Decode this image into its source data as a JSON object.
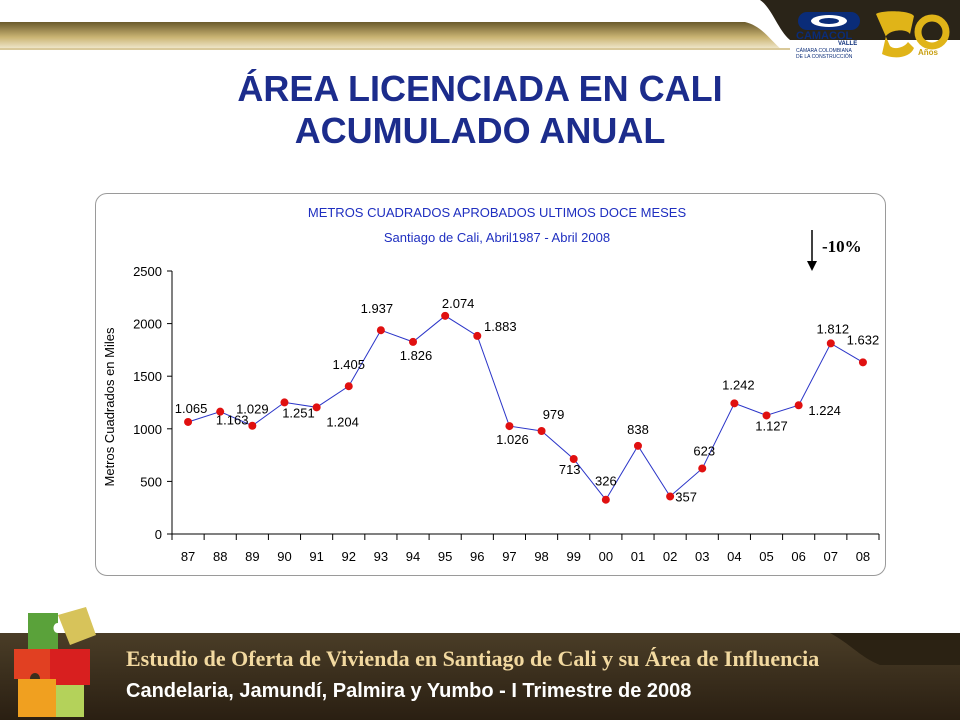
{
  "header": {
    "logo_name": "CAMACOL",
    "logo_region": "VALLE",
    "logo_org_line1": "CÁMARA COLOMBIANA",
    "logo_org_line2": "DE LA CONSTRUCCIÓN",
    "anniversary_number": "50",
    "anniversary_word": "Años"
  },
  "slide": {
    "title_line1": "ÁREA LICENCIADA EN CALI",
    "title_line2": "ACUMULADO ANUAL"
  },
  "chart_data": {
    "type": "line",
    "title": "METROS CUADRADOS APROBADOS ULTIMOS DOCE MESES",
    "subtitle": "Santiago de Cali, Abril1987 - Abril 2008",
    "xlabel": "",
    "ylabel": "Metros Cuadrados en Miles",
    "ylim": [
      0,
      2500
    ],
    "yticks": [
      0,
      500,
      1000,
      1500,
      2000,
      2500
    ],
    "grid": false,
    "categories": [
      "87",
      "88",
      "89",
      "90",
      "91",
      "92",
      "93",
      "94",
      "95",
      "96",
      "97",
      "98",
      "99",
      "00",
      "01",
      "02",
      "03",
      "04",
      "05",
      "06",
      "07",
      "08"
    ],
    "values": [
      1065,
      1163,
      1029,
      1251,
      1204,
      1405,
      1937,
      1826,
      2074,
      1883,
      1026,
      979,
      713,
      326,
      838,
      357,
      623,
      1242,
      1127,
      1224,
      1812,
      1632
    ],
    "data_labels": [
      "1.065",
      "1.163",
      "1.029",
      "1.251",
      "1.204",
      "1.405",
      "1.937",
      "1.826",
      "2.074",
      "1.883",
      "1.026",
      "979",
      "713",
      "326",
      "838",
      "357",
      "623",
      "1.242",
      "1.127",
      "1.224",
      "1.812",
      "1.632"
    ],
    "annotation": "-10%",
    "line_color": "#2b35c8",
    "marker_color": "#e01010",
    "title_color": "#1f2fc0"
  },
  "footer": {
    "line1": "Estudio de Oferta de Vivienda en Santiago de Cali y su Área de Influencia",
    "line2": "Candelaria, Jamundí, Palmira y Yumbo - I Trimestre de 2008"
  }
}
